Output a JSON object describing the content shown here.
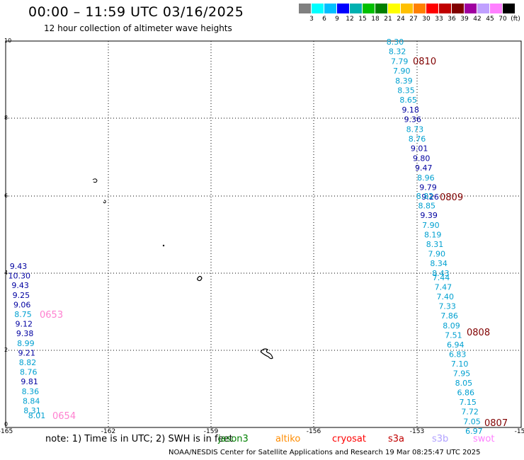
{
  "title": "00:00 – 11:59 UTC 03/16/2025",
  "subtitle": "12 hour collection of altimeter wave heights",
  "colorbar": {
    "colors": [
      "#808080",
      "#00ffff",
      "#00bfff",
      "#0000ff",
      "#00b0b0",
      "#00c000",
      "#008000",
      "#ffff00",
      "#ffc000",
      "#ff8000",
      "#ff0000",
      "#c00000",
      "#800000",
      "#a000a0",
      "#c0a0ff",
      "#ff80ff",
      "#000000"
    ],
    "labels": [
      "3",
      "6",
      "9",
      "12",
      "15",
      "18",
      "21",
      "24",
      "27",
      "30",
      "33",
      "36",
      "39",
      "42",
      "45",
      "70",
      "(ft)"
    ]
  },
  "axes": {
    "x_ticks": [
      "-165",
      "-162",
      "-159",
      "-156",
      "-153",
      "-15"
    ],
    "y_ticks": [
      "10",
      "8",
      "6",
      "4",
      "2",
      "0"
    ]
  },
  "tracks": [
    {
      "pass": "0810",
      "values": [
        "8.30",
        "8.32",
        "7.79",
        "7.90",
        "8.39",
        "8.35",
        "8.65",
        "9.18",
        "9.36",
        "8.73",
        "8.76",
        "9.01",
        "9.80",
        "9.47",
        "8.96",
        "9.79",
        "9.26"
      ]
    },
    {
      "pass": "0809",
      "values": [
        "8.82",
        "8.85",
        "9.39",
        "7.90",
        "8.19",
        "8.31",
        "7.90",
        "8.34",
        "8.43"
      ]
    },
    {
      "pass": "0808",
      "values": [
        "7.44",
        "7.47",
        "7.40",
        "7.33",
        "7.86",
        "8.09",
        "7.51",
        "6.94",
        "6.83",
        "7.10",
        "7.95",
        "8.05",
        "6.86",
        "7.15",
        "7.72",
        "7.05",
        "6.97"
      ]
    },
    {
      "pass": "0807",
      "values": []
    },
    {
      "pass": "0653",
      "values": [
        "9.43",
        "10.30",
        "9.43",
        "9.25",
        "9.06",
        "8.75",
        "9.12",
        "9.38",
        "8.99",
        "9.21",
        "8.82",
        "8.76",
        "9.81",
        "8.36",
        "8.84",
        "8.31"
      ]
    },
    {
      "pass": "0654",
      "values": [
        "8.01"
      ]
    }
  ],
  "note": "note:  1) Time is in UTC;  2) SWH is in feet",
  "missions": [
    {
      "name": "jason3",
      "color": "#008000"
    },
    {
      "name": "altiko",
      "color": "#ff8c00"
    },
    {
      "name": "cryosat",
      "color": "#ff0000"
    },
    {
      "name": "s3a",
      "color": "#c00000"
    },
    {
      "name": "s3b",
      "color": "#b0a0ff"
    },
    {
      "name": "swot",
      "color": "#ff80ff"
    }
  ],
  "footer": "NOAA/NESDIS Center for Satellite Applications and Research    19 Mar 08:25:47 UTC 2025"
}
